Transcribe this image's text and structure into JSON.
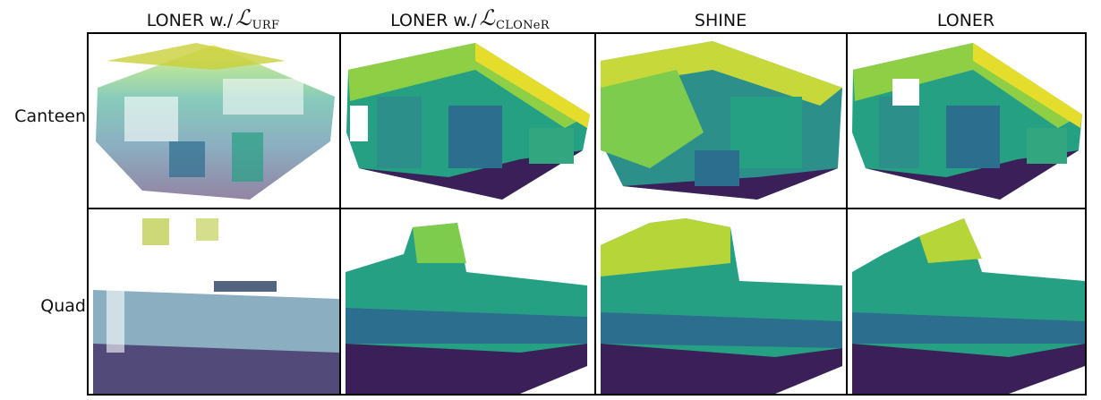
{
  "columns": [
    {
      "prefix": "LONER w./",
      "math": "ℒ",
      "sub": "URF"
    },
    {
      "prefix": "LONER w./",
      "math": "ℒ",
      "sub": "CLONeR"
    },
    {
      "prefix": "SHINE",
      "math": "",
      "sub": ""
    },
    {
      "prefix": "LONER",
      "math": "",
      "sub": ""
    }
  ],
  "rows": [
    "Canteen",
    "Quad"
  ],
  "colors": {
    "viridis_dark": "#3b1f59",
    "viridis_blue": "#2c6e8e",
    "viridis_teal": "#26a083",
    "viridis_green": "#7ecc4d",
    "viridis_yellow": "#e5dd2b"
  }
}
